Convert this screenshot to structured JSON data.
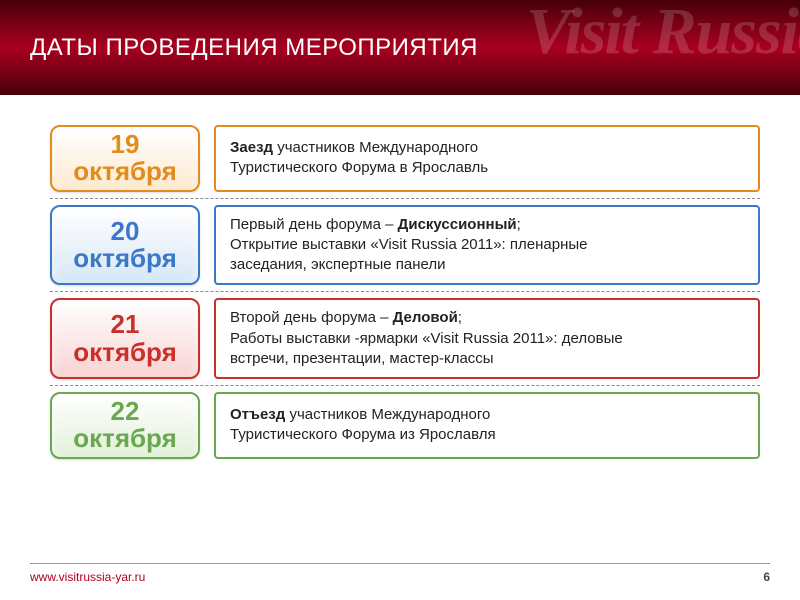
{
  "header": {
    "title": "ДАТЫ ПРОВЕДЕНИЯ МЕРОПРИЯТИЯ",
    "watermark": "Visit Russia",
    "band_gradient": [
      "#450008",
      "#7a0016",
      "#a8001f"
    ]
  },
  "rows": [
    {
      "day": "19",
      "month": "октября",
      "date_color": "#e38b1c",
      "date_bg": "#fde9cf",
      "desc_border": "#e38b1c",
      "desc_bold1": "Заезд",
      "desc_rest1": " участников Международного",
      "desc_line2": "Туристического Форума в Ярославль"
    },
    {
      "day": "20",
      "month": "октября",
      "date_color": "#3b78c8",
      "date_bg": "#d7e7f6",
      "desc_border": "#3b78c8",
      "desc_pre": "Первый день форума – ",
      "desc_bold": "Дискуссионный",
      "desc_post": ";",
      "desc_line2": "Открытие выставки «Visit Russia 2011»: пленарные",
      "desc_line3": "заседания, экспертные панели"
    },
    {
      "day": "21",
      "month": "октября",
      "date_color": "#c9302c",
      "date_bg": "#f7d4d3",
      "desc_border": "#c9302c",
      "desc_pre": "Второй день форума – ",
      "desc_bold": "Деловой",
      "desc_post": ";",
      "desc_line2": "Работы выставки -ярмарки «Visit Russia 2011»: деловые",
      "desc_line3": "встречи, презентации, мастер-классы"
    },
    {
      "day": "22",
      "month": "октября",
      "date_color": "#6aa84f",
      "date_bg": "#e2f0d9",
      "desc_border": "#6aa84f",
      "desc_bold1": "Отъезд",
      "desc_rest1": " участников Международного",
      "desc_line2": "Туристического Форума из Ярославля"
    }
  ],
  "footer": {
    "url": "www.visitrussia-yar.ru",
    "page": "6"
  },
  "style": {
    "date_font_size": 26,
    "desc_font_size": 15,
    "title_font_size": 24
  }
}
